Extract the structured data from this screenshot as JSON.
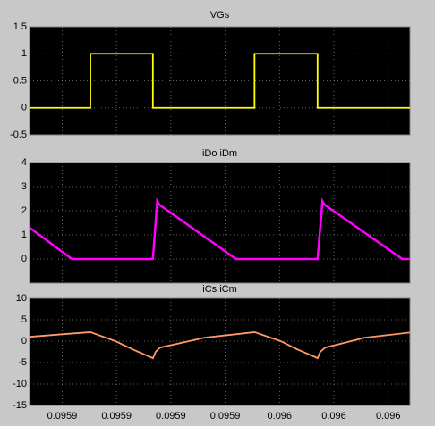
{
  "chart_data": [
    {
      "type": "line",
      "title": "VGs",
      "x": [
        0.095904,
        0.0959152,
        0.0959152,
        0.0959267,
        0.0959267,
        0.0959454,
        0.0959454,
        0.095957,
        0.095957,
        0.095974
      ],
      "series": [
        {
          "color": "#ffff00",
          "values": [
            0,
            0,
            1,
            1,
            0,
            0,
            1,
            1,
            0,
            0
          ]
        }
      ],
      "xlim": [
        0.095904,
        0.095974
      ],
      "ylim": [
        -0.5,
        1.5
      ],
      "yticks": [
        -0.5,
        0,
        0.5,
        1,
        1.5
      ],
      "grid": true
    },
    {
      "type": "line",
      "title": "iDo iDm",
      "x": [
        0.095904,
        0.0959118,
        0.0959267,
        0.0959275,
        0.0959279,
        0.095942,
        0.095957,
        0.0959579,
        0.0959583,
        0.0959726,
        0.095974
      ],
      "series": [
        {
          "color": "#ff00ff",
          "values": [
            1.3,
            0,
            0,
            2.4,
            2.25,
            0,
            0,
            2.4,
            2.25,
            0,
            0
          ]
        }
      ],
      "xlim": [
        0.095904,
        0.095974
      ],
      "ylim": [
        -1,
        4
      ],
      "yticks": [
        0,
        1,
        2,
        3,
        4
      ],
      "grid": true
    },
    {
      "type": "line",
      "title": "iCs iCm",
      "x": [
        0.095904,
        0.09591,
        0.0959152,
        0.0959198,
        0.0959231,
        0.0959264,
        0.0959267,
        0.0959272,
        0.095928,
        0.0959362,
        0.0959454,
        0.0959502,
        0.0959534,
        0.0959567,
        0.095957,
        0.0959575,
        0.0959584,
        0.0959657,
        0.095974
      ],
      "series": [
        {
          "color": "#ff9966",
          "values": [
            1,
            1.6,
            2.1,
            0,
            -2,
            -3.8,
            -4,
            -2.5,
            -1.5,
            0.8,
            2.1,
            0,
            -2,
            -3.8,
            -4,
            -2.5,
            -1.5,
            0.8,
            2
          ]
        }
      ],
      "xlim": [
        0.095904,
        0.095974
      ],
      "xticks": [
        {
          "value": 0.09591,
          "label": "0.0959"
        },
        {
          "value": 0.09592,
          "label": "0.0959"
        },
        {
          "value": 0.09593,
          "label": "0.0959"
        },
        {
          "value": 0.09594,
          "label": "0.0959"
        },
        {
          "value": 0.09595,
          "label": "0.096"
        },
        {
          "value": 0.09596,
          "label": "0.096"
        },
        {
          "value": 0.09597,
          "label": "0.096"
        }
      ],
      "ylim": [
        -15,
        10
      ],
      "yticks": [
        -15,
        -10,
        -5,
        0,
        5,
        10
      ],
      "grid": true
    }
  ]
}
